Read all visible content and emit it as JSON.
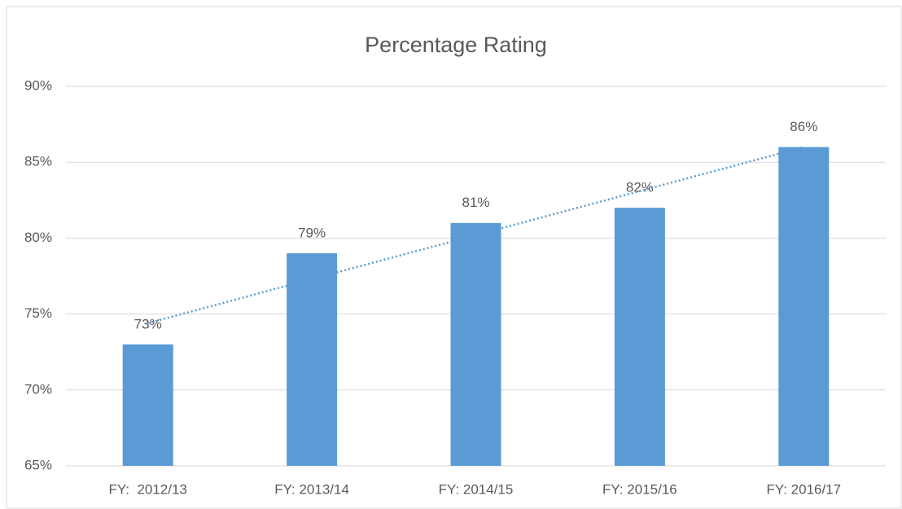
{
  "chart_data": {
    "type": "bar",
    "title": "Percentage Rating",
    "categories": [
      "FY:  2012/13",
      "FY: 2013/14",
      "FY: 2014/15",
      "FY: 2015/16",
      "FY: 2016/17"
    ],
    "values": [
      73,
      79,
      81,
      82,
      86
    ],
    "value_labels": [
      "73%",
      "79%",
      "81%",
      "82%",
      "86%"
    ],
    "color": "#5b9bd5",
    "ylim": [
      65,
      90
    ],
    "yticks": [
      {
        "value": 65,
        "label": "65%"
      },
      {
        "value": 70,
        "label": "70%"
      },
      {
        "value": 75,
        "label": "75%"
      },
      {
        "value": 80,
        "label": "80%"
      },
      {
        "value": 85,
        "label": "85%"
      },
      {
        "value": 90,
        "label": "90%"
      }
    ],
    "grid": true,
    "trendline": "linear",
    "trendline_color": "#5b9bd5"
  }
}
